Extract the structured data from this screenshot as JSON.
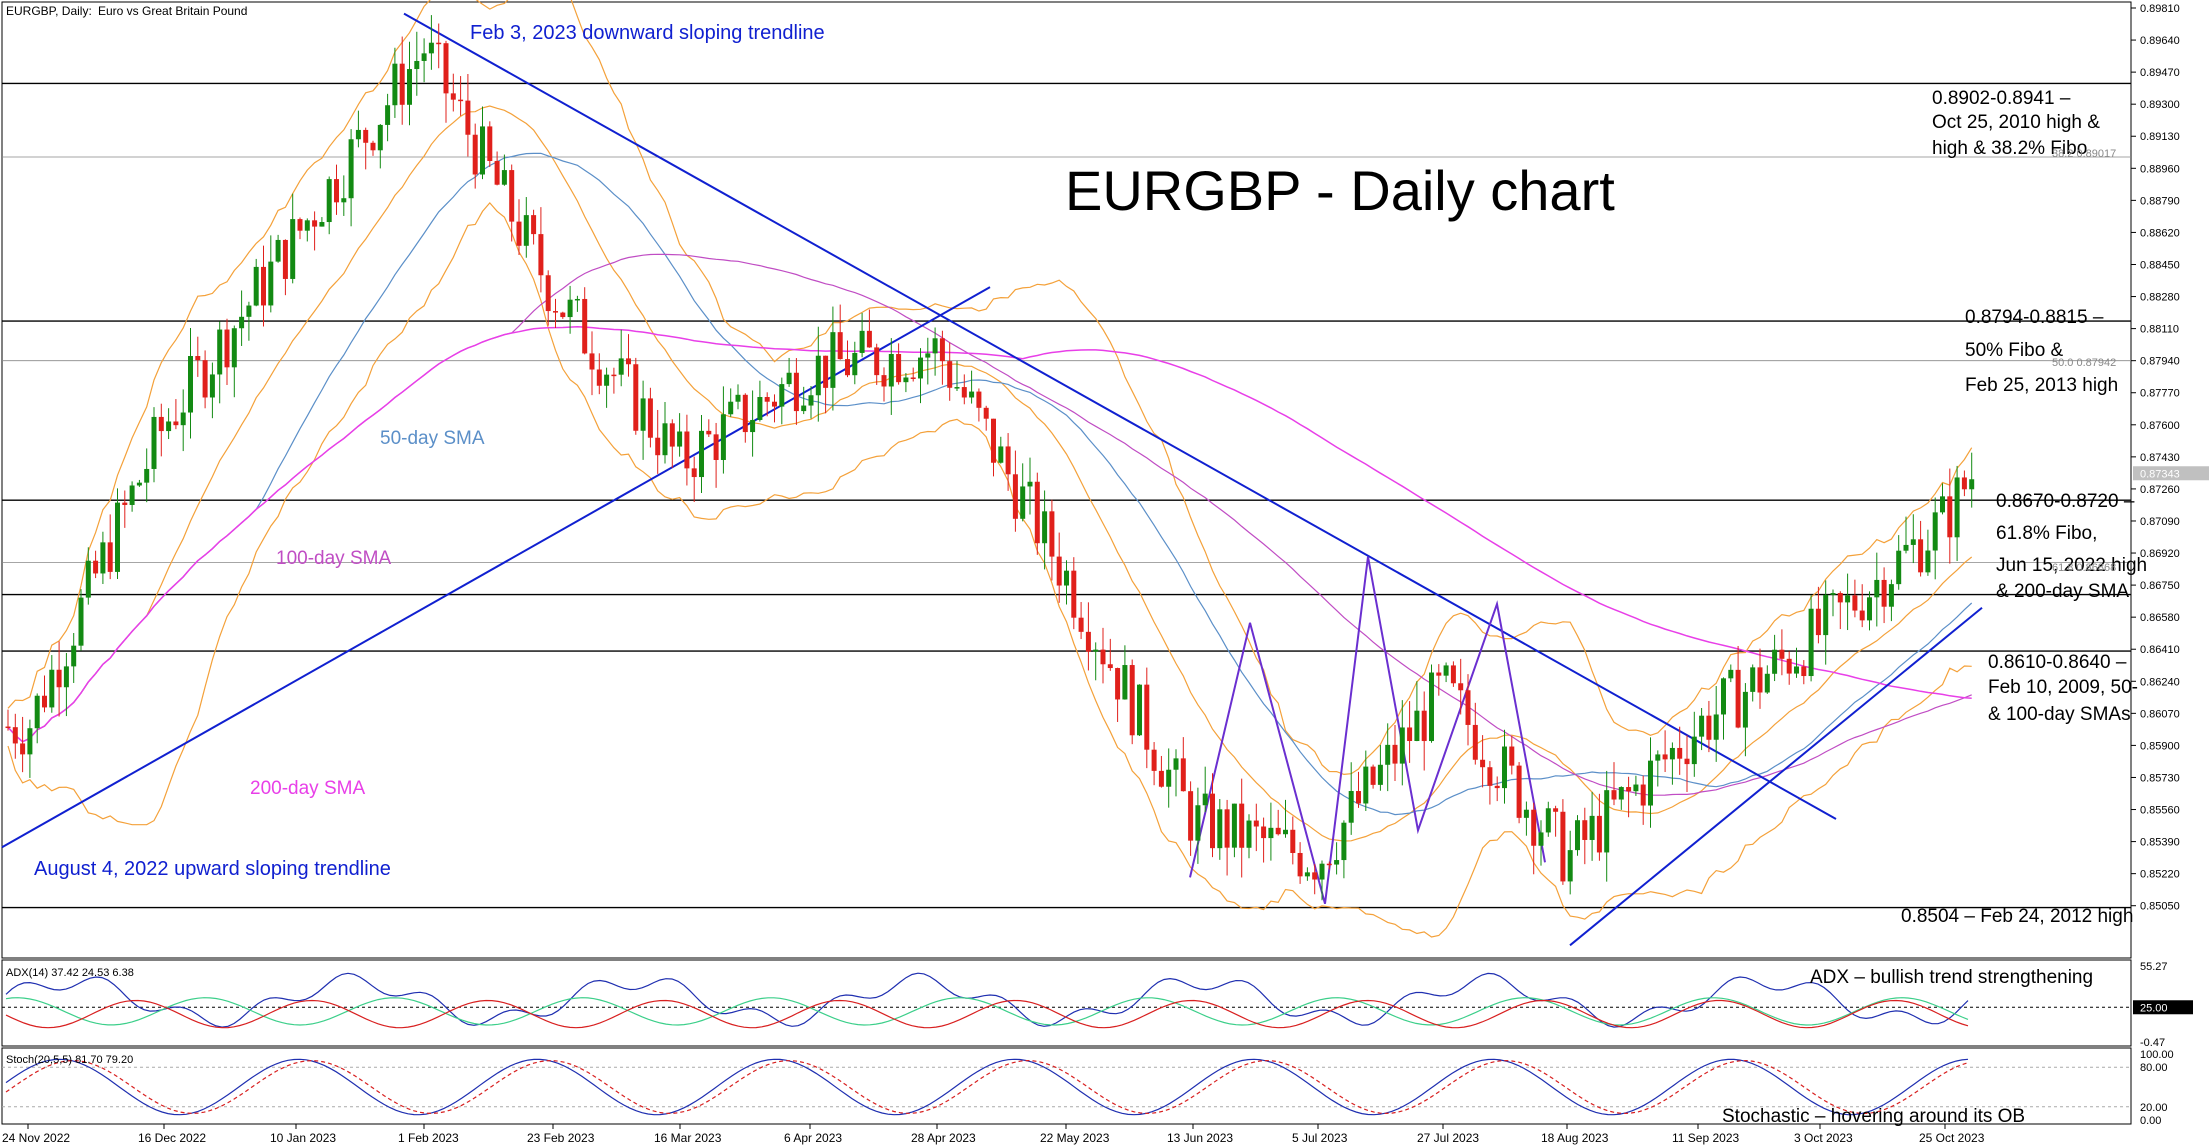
{
  "header": {
    "symbol": "EURGBP, Daily:",
    "description": "Euro vs Great Britain Pound",
    "title": "EURGBP - Daily chart"
  },
  "colors": {
    "bull": "#138a13",
    "bear": "#e0201b",
    "bollinger": "#f4a13a",
    "sma50": "#5b8fc8",
    "sma100": "#c04dc4",
    "sma200": "#e83fe8",
    "trendline": "#1020d0",
    "pattern": "#6a2fd0",
    "adx": "#1f2fb0",
    "plus_di": "#3ccf8a",
    "minus_di": "#d82020",
    "stoch_k": "#1f2fb0",
    "stoch_d": "#d82020"
  },
  "chart_data": {
    "type": "candlestick",
    "title": "EURGBP - Daily chart",
    "ylim": [
      0.849,
      0.8981
    ],
    "price_axis_ticks": [
      "0.89810",
      "0.89640",
      "0.89470",
      "0.89300",
      "0.89130",
      "0.88960",
      "0.88790",
      "0.88620",
      "0.88450",
      "0.88280",
      "0.88110",
      "0.87940",
      "0.87770",
      "0.87600",
      "0.87430",
      "0.87260",
      "0.87090",
      "0.86920",
      "0.86750",
      "0.86580",
      "0.86410",
      "0.86240",
      "0.86070",
      "0.85900",
      "0.85730",
      "0.85560",
      "0.85390",
      "0.85220",
      "0.85050"
    ],
    "current_price": "0.87343",
    "date_labels": [
      "24 Nov 2022",
      "16 Dec 2022",
      "10 Jan 2023",
      "1 Feb 2023",
      "23 Feb 2023",
      "16 Mar 2023",
      "6 Apr 2023",
      "28 Apr 2023",
      "22 May 2023",
      "13 Jun 2023",
      "5 Jul 2023",
      "27 Jul 2023",
      "18 Aug 2023",
      "11 Sep 2023",
      "3 Oct 2023",
      "25 Oct 2023"
    ],
    "horizontal_levels": [
      0.8941,
      0.8902,
      0.8815,
      0.8794,
      0.872,
      0.867,
      0.864,
      0.8504
    ],
    "fibo_labels": [
      {
        "text": "38.2 0.89017",
        "price": 0.8902
      },
      {
        "text": "50.0 0.87942",
        "price": 0.8794
      },
      {
        "text": "61.8 0.86868",
        "price": 0.8687
      }
    ],
    "key_points": [
      {
        "date": "24 Nov 2022",
        "close": 0.86
      },
      {
        "date": "16 Dec 2022",
        "close": 0.876
      },
      {
        "date": "10 Jan 2023",
        "close": 0.886
      },
      {
        "date": "1 Feb 2023",
        "close": 0.896
      },
      {
        "date": "23 Feb 2023",
        "close": 0.883
      },
      {
        "date": "16 Mar 2023",
        "close": 0.874
      },
      {
        "date": "6 Apr 2023",
        "close": 0.879
      },
      {
        "date": "28 Apr 2023",
        "close": 0.88
      },
      {
        "date": "22 May 2023",
        "close": 0.868
      },
      {
        "date": "13 Jun 2023",
        "close": 0.855
      },
      {
        "date": "5 Jul 2023",
        "close": 0.853
      },
      {
        "date": "27 Jul 2023",
        "close": 0.862
      },
      {
        "date": "18 Aug 2023",
        "close": 0.853
      },
      {
        "date": "11 Sep 2023",
        "close": 0.86
      },
      {
        "date": "3 Oct 2023",
        "close": 0.865
      },
      {
        "date": "25 Oct 2023",
        "close": 0.871
      },
      {
        "date": "end",
        "close": 0.8734
      }
    ],
    "sma_labels": {
      "sma50": "50-day SMA",
      "sma100": "100-day SMA",
      "sma200": "200-day SMA"
    },
    "trendline_labels": {
      "down": "Feb 3, 2023 downward sloping trendline",
      "up": "August 4, 2022 upward sloping trendline"
    },
    "annotations": [
      [
        "0.8902-0.8941 –",
        "Oct 25, 2010 high &",
        "high & 38.2% Fibo"
      ],
      [
        "0.8794-0.8815 –",
        "50% Fibo &",
        "Feb 25, 2013 high"
      ],
      [
        "0.8670-0.8720 –",
        "61.8% Fibo,",
        "Jun 15, 2022 high",
        "& 200-day SMA"
      ],
      [
        "0.8610-0.8640 –",
        "Feb 10, 2009, 50-",
        "& 100-day SMAs"
      ],
      [
        "0.8504 – Feb 24, 2012 high"
      ]
    ],
    "adx": {
      "label": "ADX(14) 37.42 24.53 6.38",
      "ticks": [
        "55.27",
        "25.00",
        "-0.47"
      ],
      "current_value": "25.00",
      "note": "ADX – bullish trend strengthening"
    },
    "stoch": {
      "label": "Stoch(20,5,5) 81.70 79.20",
      "ticks": [
        "100.00",
        "80.00",
        "20.00",
        "0.00"
      ],
      "note": "Stochastic – hovering around its OB"
    }
  }
}
